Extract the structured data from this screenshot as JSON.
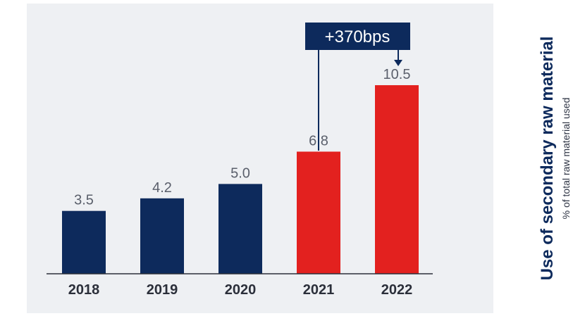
{
  "chart_data": {
    "type": "bar",
    "title": "Use of secondary raw material",
    "subtitle": "% of total raw material used",
    "categories": [
      "2018",
      "2019",
      "2020",
      "2021",
      "2022"
    ],
    "values": [
      3.5,
      4.2,
      5.0,
      6.8,
      10.5
    ],
    "value_labels": [
      "3.5",
      "4.2",
      "5.0",
      "6.8",
      "10.5"
    ],
    "bar_colors": [
      "#0d2a5c",
      "#0d2a5c",
      "#0d2a5c",
      "#e3211f",
      "#e3211f"
    ],
    "ylim": [
      0,
      12.5
    ],
    "grid": false,
    "annotation": {
      "text": "+370bps",
      "from": "2021",
      "to": "2022"
    }
  },
  "colors": {
    "background": "#ffffff",
    "panel": "#eef0f3",
    "navy": "#0d2a5c",
    "red": "#e3211f"
  }
}
